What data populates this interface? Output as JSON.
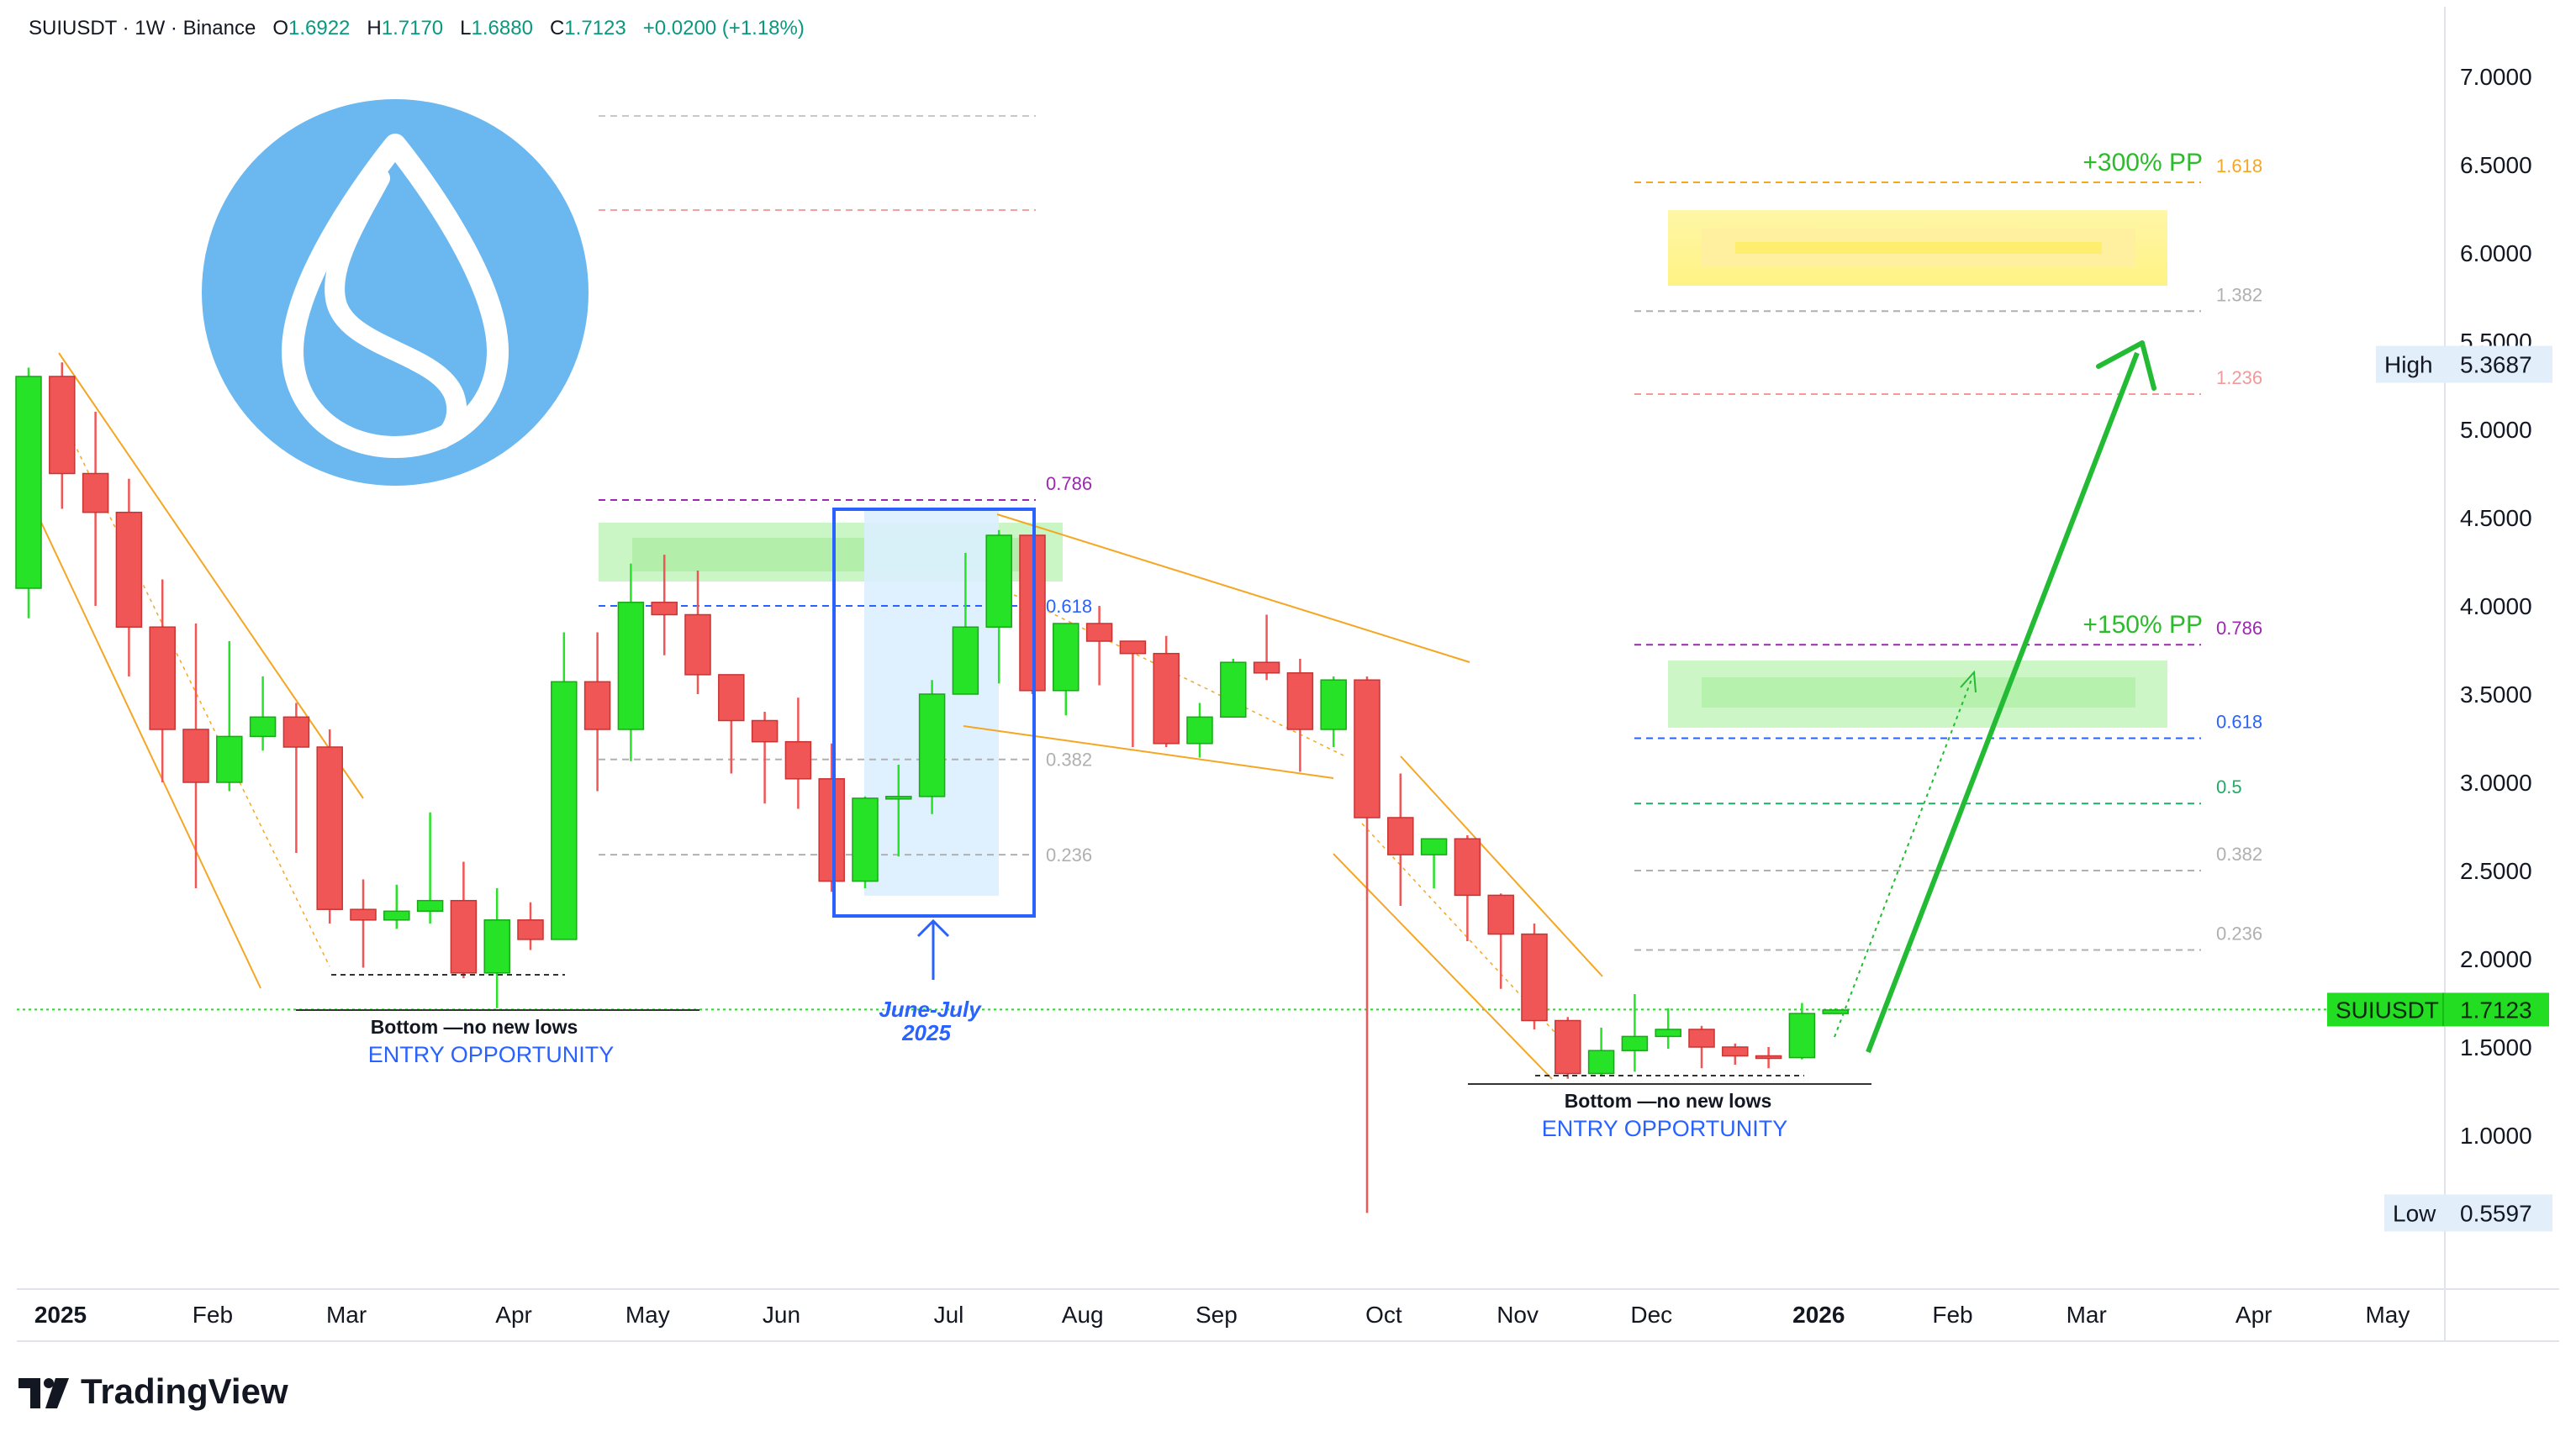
{
  "header": {
    "symbol": "SUIUSDT · 1W · Binance",
    "open_label": "O",
    "open": "1.6922",
    "high_label": "H",
    "high": "1.7170",
    "low_label": "L",
    "low": "1.6880",
    "close_label": "C",
    "close": "1.7123",
    "change": "+0.0200 (+1.18%)"
  },
  "brand": {
    "name": "TradingView"
  },
  "colors": {
    "bull": "#27e327",
    "bear": "#f15656",
    "orange": "#f5a623",
    "green_arrow": "#22bb33",
    "blue": "#2962ff",
    "purple": "#9c27b0",
    "price_line": "#22dd22",
    "logo_blue": "#6bb7f0"
  },
  "chart_data": {
    "type": "candlestick",
    "symbol": "SUIUSDT",
    "timeframe": "1W",
    "ylim": [
      0.3,
      7.3
    ],
    "y_ticks": [
      "7.0000",
      "6.5000",
      "6.0000",
      "5.5000",
      "5.0000",
      "4.5000",
      "4.0000",
      "3.5000",
      "3.0000",
      "2.5000",
      "2.0000",
      "1.5000",
      "1.0000"
    ],
    "x_labels": [
      {
        "week": 0.5,
        "label": "2025",
        "bold": true
      },
      {
        "week": 5.5,
        "label": "Feb"
      },
      {
        "week": 9.5,
        "label": "Mar"
      },
      {
        "week": 14.5,
        "label": "Apr"
      },
      {
        "week": 18.5,
        "label": "May"
      },
      {
        "week": 22.5,
        "label": "Jun"
      },
      {
        "week": 27.5,
        "label": "Jul"
      },
      {
        "week": 31.5,
        "label": "Aug"
      },
      {
        "week": 35.5,
        "label": "Sep"
      },
      {
        "week": 40.5,
        "label": "Oct"
      },
      {
        "week": 44.5,
        "label": "Nov"
      },
      {
        "week": 48.5,
        "label": "Dec"
      },
      {
        "week": 53.5,
        "label": "2026",
        "bold": true
      },
      {
        "week": 57.5,
        "label": "Feb"
      },
      {
        "week": 61.5,
        "label": "Mar"
      },
      {
        "week": 66.5,
        "label": "Apr"
      },
      {
        "week": 70.5,
        "label": "May"
      }
    ],
    "candles": [
      [
        4.1,
        5.3,
        3.93,
        5.35
      ],
      [
        5.3,
        4.75,
        4.55,
        5.38
      ],
      [
        4.75,
        4.53,
        4.0,
        5.1
      ],
      [
        4.53,
        3.88,
        3.6,
        4.72
      ],
      [
        3.88,
        3.3,
        3.0,
        4.15
      ],
      [
        3.3,
        3.0,
        2.4,
        3.9
      ],
      [
        3.0,
        3.26,
        2.95,
        3.8
      ],
      [
        3.26,
        3.37,
        3.18,
        3.6
      ],
      [
        3.37,
        3.2,
        2.6,
        3.45
      ],
      [
        3.2,
        2.28,
        2.2,
        3.3
      ],
      [
        2.28,
        2.22,
        1.95,
        2.45
      ],
      [
        2.22,
        2.27,
        2.17,
        2.42
      ],
      [
        2.27,
        2.33,
        2.2,
        2.83
      ],
      [
        2.33,
        1.92,
        1.89,
        2.55
      ],
      [
        1.92,
        2.22,
        1.72,
        2.4
      ],
      [
        2.22,
        2.11,
        2.05,
        2.32
      ],
      [
        2.11,
        3.57,
        2.11,
        3.85
      ],
      [
        3.57,
        3.3,
        2.95,
        3.85
      ],
      [
        3.3,
        4.02,
        3.12,
        4.24
      ],
      [
        4.02,
        3.95,
        3.72,
        4.29
      ],
      [
        3.95,
        3.61,
        3.5,
        4.2
      ],
      [
        3.61,
        3.35,
        3.05,
        3.6
      ],
      [
        3.35,
        3.23,
        2.88,
        3.4
      ],
      [
        3.23,
        3.02,
        2.85,
        3.48
      ],
      [
        3.02,
        2.44,
        2.38,
        3.22
      ],
      [
        2.44,
        2.91,
        2.4,
        2.92
      ],
      [
        2.91,
        2.92,
        2.58,
        3.1
      ],
      [
        2.92,
        3.5,
        2.82,
        3.58
      ],
      [
        3.5,
        3.88,
        3.5,
        4.3
      ],
      [
        3.88,
        4.4,
        3.56,
        4.43
      ],
      [
        4.4,
        3.52,
        3.5,
        4.4
      ],
      [
        3.52,
        3.9,
        3.38,
        3.9
      ],
      [
        3.9,
        3.8,
        3.55,
        4.0
      ],
      [
        3.8,
        3.73,
        3.2,
        3.8
      ],
      [
        3.73,
        3.22,
        3.2,
        3.83
      ],
      [
        3.22,
        3.37,
        3.14,
        3.45
      ],
      [
        3.37,
        3.68,
        3.37,
        3.7
      ],
      [
        3.68,
        3.62,
        3.58,
        3.95
      ],
      [
        3.62,
        3.3,
        3.06,
        3.7
      ],
      [
        3.3,
        3.58,
        3.2,
        3.6
      ],
      [
        3.58,
        2.8,
        0.56,
        3.6
      ],
      [
        2.8,
        2.59,
        2.3,
        3.05
      ],
      [
        2.59,
        2.68,
        2.4,
        2.68
      ],
      [
        2.68,
        2.36,
        2.1,
        2.7
      ],
      [
        2.36,
        2.14,
        1.83,
        2.37
      ],
      [
        2.14,
        1.65,
        1.6,
        2.2
      ],
      [
        1.65,
        1.35,
        1.32,
        1.67
      ],
      [
        1.35,
        1.48,
        1.34,
        1.61
      ],
      [
        1.48,
        1.56,
        1.36,
        1.8
      ],
      [
        1.56,
        1.6,
        1.49,
        1.72
      ],
      [
        1.6,
        1.5,
        1.38,
        1.62
      ],
      [
        1.5,
        1.45,
        1.4,
        1.52
      ],
      [
        1.45,
        1.44,
        1.38,
        1.5
      ],
      [
        1.44,
        1.69,
        1.43,
        1.75
      ],
      [
        1.69,
        1.71,
        1.69,
        1.72
      ]
    ],
    "current_price": {
      "label": "SUIUSDT",
      "value": "1.7123",
      "y": 1.7123
    },
    "high_marker": {
      "label": "High",
      "value": "5.3687",
      "y": 5.3687
    },
    "low_marker": {
      "label": "Low",
      "value": "0.5597",
      "y": 0.5597
    },
    "fib_2025": [
      {
        "ratio": "0.786",
        "y": 4.6,
        "color": "#9c27b0"
      },
      {
        "ratio": "0.618",
        "y": 4.0,
        "color": "#2962ff"
      },
      {
        "ratio": "0.382",
        "y": 3.13,
        "color": "#b0b0b0"
      },
      {
        "ratio": "0.236",
        "y": 2.59,
        "color": "#b0b0b0"
      }
    ],
    "fib_targets": [
      {
        "ratio": "1.618",
        "y": 6.4,
        "color": "#f5a623",
        "target": "+300% PP"
      },
      {
        "ratio": "1.382",
        "y": 5.67,
        "color": "#b0b0b0"
      },
      {
        "ratio": "1.236",
        "y": 5.2,
        "color": "#f29999"
      },
      {
        "ratio": "0.786",
        "y": 3.78,
        "color": "#9c27b0",
        "target": "+150% PP"
      },
      {
        "ratio": "0.618",
        "y": 3.25,
        "color": "#2962ff"
      },
      {
        "ratio": "0.5",
        "y": 2.88,
        "color": "#22aa66"
      },
      {
        "ratio": "0.382",
        "y": 2.5,
        "color": "#b0b0b0"
      },
      {
        "ratio": "0.236",
        "y": 2.05,
        "color": "#b0b0b0"
      }
    ],
    "annotations": {
      "bottom1_title": "Bottom —no new lows",
      "bottom1_sub": "ENTRY OPPORTUNITY",
      "bottom2_title": "Bottom —no new lows",
      "bottom2_sub": "ENTRY OPPORTUNITY",
      "box_label_1": "June-July",
      "box_label_2": "2025"
    }
  }
}
